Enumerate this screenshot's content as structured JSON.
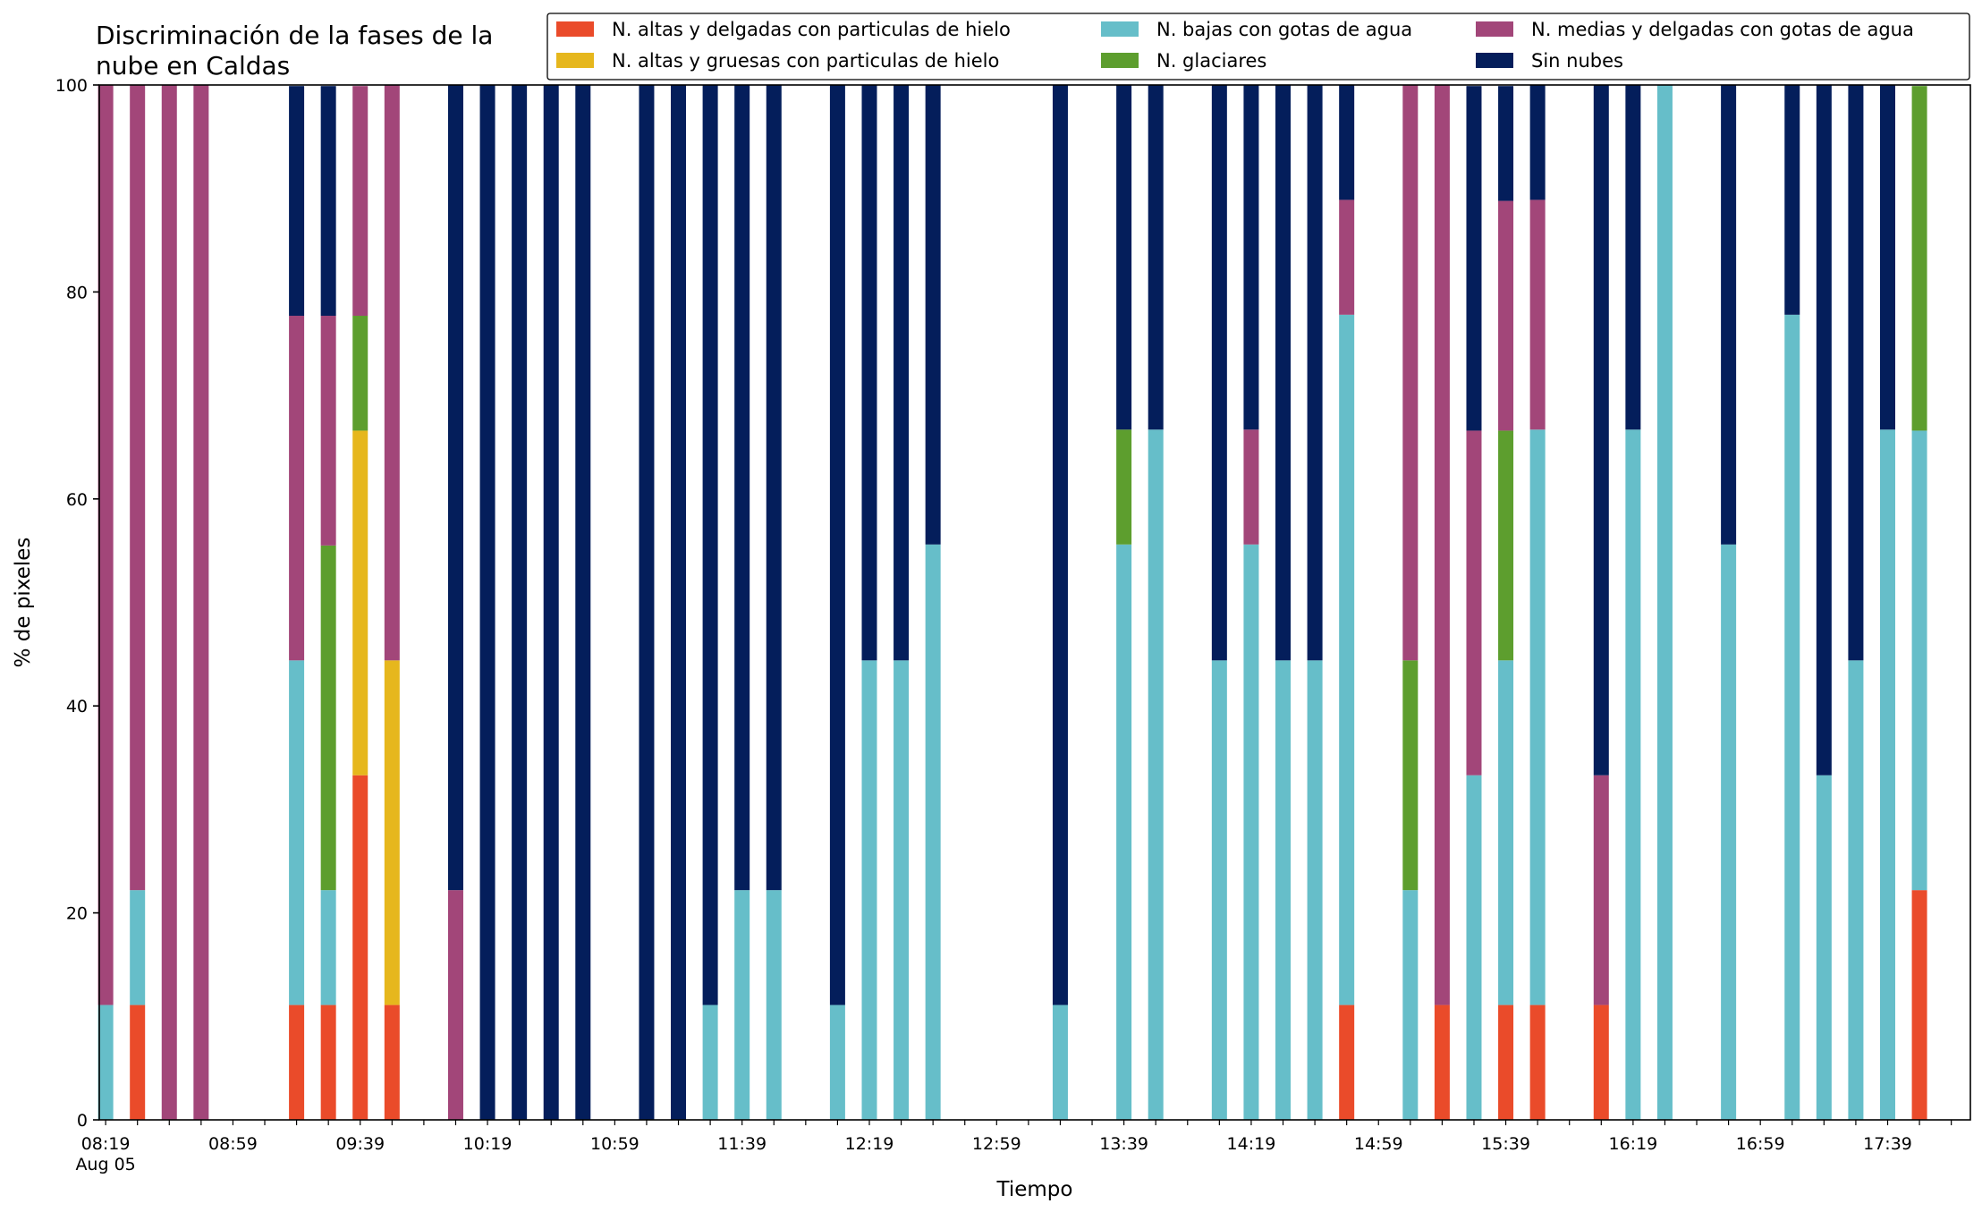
{
  "chart_data": {
    "type": "bar",
    "stacked": true,
    "title": "Discriminación de la fases de la\nnube en Caldas",
    "xlabel": "Tiempo",
    "ylabel": "% de pixeles",
    "ylim": [
      0,
      100
    ],
    "xlim": [
      "08:17",
      "18:05"
    ],
    "grid": false,
    "legend_position": "top-right",
    "y_ticks": [
      0,
      20,
      40,
      60,
      80,
      100
    ],
    "x_tick_labels": [
      {
        "time": "08:19",
        "label": "08:19",
        "sublabel": "Aug 05"
      },
      {
        "time": "08:59",
        "label": "08:59"
      },
      {
        "time": "09:39",
        "label": "09:39"
      },
      {
        "time": "10:19",
        "label": "10:19"
      },
      {
        "time": "10:59",
        "label": "10:59"
      },
      {
        "time": "11:39",
        "label": "11:39"
      },
      {
        "time": "12:19",
        "label": "12:19"
      },
      {
        "time": "12:59",
        "label": "12:59"
      },
      {
        "time": "13:39",
        "label": "13:39"
      },
      {
        "time": "14:19",
        "label": "14:19"
      },
      {
        "time": "14:59",
        "label": "14:59"
      },
      {
        "time": "15:39",
        "label": "15:39"
      },
      {
        "time": "16:19",
        "label": "16:19"
      },
      {
        "time": "16:59",
        "label": "16:59"
      },
      {
        "time": "17:39",
        "label": "17:39"
      }
    ],
    "series": [
      {
        "key": "hielo_delgadas",
        "name": "N. altas y delgadas con particulas de hielo",
        "color": "#ea4b2a"
      },
      {
        "key": "hielo_gruesas",
        "name": "N. altas y gruesas con particulas de hielo",
        "color": "#e6b71d"
      },
      {
        "key": "bajas_agua",
        "name": "N. bajas con gotas de agua",
        "color": "#66bec9"
      },
      {
        "key": "glaciares",
        "name": "N. glaciares",
        "color": "#5d9e2e"
      },
      {
        "key": "medias_agua",
        "name": "N. medias y delgadas con gotas de agua",
        "color": "#a24679"
      },
      {
        "key": "sin_nubes",
        "name": "Sin nubes",
        "color": "#041e5b"
      }
    ],
    "stack_order": [
      "hielo_delgadas",
      "hielo_gruesas",
      "bajas_agua",
      "glaciares",
      "medias_agua",
      "sin_nubes"
    ],
    "legend_order": [
      "hielo_delgadas",
      "hielo_gruesas",
      "bajas_agua",
      "glaciares",
      "medias_agua",
      "sin_nubes"
    ],
    "bars": [
      {
        "time": "08:19",
        "hielo_delgadas": 0,
        "hielo_gruesas": 0,
        "bajas_agua": 11.1,
        "glaciares": 0,
        "medias_agua": 88.9,
        "sin_nubes": 0
      },
      {
        "time": "08:29",
        "hielo_delgadas": 11.1,
        "hielo_gruesas": 0,
        "bajas_agua": 11.1,
        "glaciares": 0,
        "medias_agua": 77.8,
        "sin_nubes": 0
      },
      {
        "time": "08:39",
        "hielo_delgadas": 0,
        "hielo_gruesas": 0,
        "bajas_agua": 0,
        "glaciares": 0,
        "medias_agua": 100,
        "sin_nubes": 0
      },
      {
        "time": "08:49",
        "hielo_delgadas": 0,
        "hielo_gruesas": 0,
        "bajas_agua": 0,
        "glaciares": 0,
        "medias_agua": 100,
        "sin_nubes": 0
      },
      {
        "time": "09:19",
        "hielo_delgadas": 11.1,
        "hielo_gruesas": 0,
        "bajas_agua": 33.3,
        "glaciares": 0,
        "medias_agua": 33.3,
        "sin_nubes": 22.2
      },
      {
        "time": "09:29",
        "hielo_delgadas": 11.1,
        "hielo_gruesas": 0,
        "bajas_agua": 11.1,
        "glaciares": 33.3,
        "medias_agua": 22.2,
        "sin_nubes": 22.2
      },
      {
        "time": "09:39",
        "hielo_delgadas": 33.3,
        "hielo_gruesas": 33.3,
        "bajas_agua": 0,
        "glaciares": 11.1,
        "medias_agua": 22.2,
        "sin_nubes": 0
      },
      {
        "time": "09:49",
        "hielo_delgadas": 11.1,
        "hielo_gruesas": 33.3,
        "bajas_agua": 0,
        "glaciares": 0,
        "medias_agua": 55.6,
        "sin_nubes": 0
      },
      {
        "time": "10:09",
        "hielo_delgadas": 0,
        "hielo_gruesas": 0,
        "bajas_agua": 0,
        "glaciares": 0,
        "medias_agua": 22.2,
        "sin_nubes": 77.8
      },
      {
        "time": "10:19",
        "hielo_delgadas": 0,
        "hielo_gruesas": 0,
        "bajas_agua": 0,
        "glaciares": 0,
        "medias_agua": 0,
        "sin_nubes": 100
      },
      {
        "time": "10:29",
        "hielo_delgadas": 0,
        "hielo_gruesas": 0,
        "bajas_agua": 0,
        "glaciares": 0,
        "medias_agua": 0,
        "sin_nubes": 100
      },
      {
        "time": "10:39",
        "hielo_delgadas": 0,
        "hielo_gruesas": 0,
        "bajas_agua": 0,
        "glaciares": 0,
        "medias_agua": 0,
        "sin_nubes": 100
      },
      {
        "time": "10:49",
        "hielo_delgadas": 0,
        "hielo_gruesas": 0,
        "bajas_agua": 0,
        "glaciares": 0,
        "medias_agua": 0,
        "sin_nubes": 100
      },
      {
        "time": "11:09",
        "hielo_delgadas": 0,
        "hielo_gruesas": 0,
        "bajas_agua": 0,
        "glaciares": 0,
        "medias_agua": 0,
        "sin_nubes": 100
      },
      {
        "time": "11:19",
        "hielo_delgadas": 0,
        "hielo_gruesas": 0,
        "bajas_agua": 0,
        "glaciares": 0,
        "medias_agua": 0,
        "sin_nubes": 100
      },
      {
        "time": "11:29",
        "hielo_delgadas": 0,
        "hielo_gruesas": 0,
        "bajas_agua": 11.1,
        "glaciares": 0,
        "medias_agua": 0,
        "sin_nubes": 88.9
      },
      {
        "time": "11:39",
        "hielo_delgadas": 0,
        "hielo_gruesas": 0,
        "bajas_agua": 22.2,
        "glaciares": 0,
        "medias_agua": 0,
        "sin_nubes": 77.8
      },
      {
        "time": "11:49",
        "hielo_delgadas": 0,
        "hielo_gruesas": 0,
        "bajas_agua": 22.2,
        "glaciares": 0,
        "medias_agua": 0,
        "sin_nubes": 77.8
      },
      {
        "time": "12:09",
        "hielo_delgadas": 0,
        "hielo_gruesas": 0,
        "bajas_agua": 11.1,
        "glaciares": 0,
        "medias_agua": 0,
        "sin_nubes": 88.9
      },
      {
        "time": "12:19",
        "hielo_delgadas": 0,
        "hielo_gruesas": 0,
        "bajas_agua": 44.4,
        "glaciares": 0,
        "medias_agua": 0,
        "sin_nubes": 55.6
      },
      {
        "time": "12:29",
        "hielo_delgadas": 0,
        "hielo_gruesas": 0,
        "bajas_agua": 44.4,
        "glaciares": 0,
        "medias_agua": 0,
        "sin_nubes": 55.6
      },
      {
        "time": "12:39",
        "hielo_delgadas": 0,
        "hielo_gruesas": 0,
        "bajas_agua": 55.6,
        "glaciares": 0,
        "medias_agua": 0,
        "sin_nubes": 44.4
      },
      {
        "time": "13:19",
        "hielo_delgadas": 0,
        "hielo_gruesas": 0,
        "bajas_agua": 11.1,
        "glaciares": 0,
        "medias_agua": 0,
        "sin_nubes": 88.9
      },
      {
        "time": "13:39",
        "hielo_delgadas": 0,
        "hielo_gruesas": 0,
        "bajas_agua": 55.6,
        "glaciares": 11.1,
        "medias_agua": 0,
        "sin_nubes": 33.3
      },
      {
        "time": "13:49",
        "hielo_delgadas": 0,
        "hielo_gruesas": 0,
        "bajas_agua": 66.7,
        "glaciares": 0,
        "medias_agua": 0,
        "sin_nubes": 33.3
      },
      {
        "time": "14:09",
        "hielo_delgadas": 0,
        "hielo_gruesas": 0,
        "bajas_agua": 44.4,
        "glaciares": 0,
        "medias_agua": 0,
        "sin_nubes": 55.6
      },
      {
        "time": "14:19",
        "hielo_delgadas": 0,
        "hielo_gruesas": 0,
        "bajas_agua": 55.6,
        "glaciares": 0,
        "medias_agua": 11.1,
        "sin_nubes": 33.3
      },
      {
        "time": "14:29",
        "hielo_delgadas": 0,
        "hielo_gruesas": 0,
        "bajas_agua": 44.4,
        "glaciares": 0,
        "medias_agua": 0,
        "sin_nubes": 55.6
      },
      {
        "time": "14:39",
        "hielo_delgadas": 0,
        "hielo_gruesas": 0,
        "bajas_agua": 44.4,
        "glaciares": 0,
        "medias_agua": 0,
        "sin_nubes": 55.6
      },
      {
        "time": "14:49",
        "hielo_delgadas": 11.1,
        "hielo_gruesas": 0,
        "bajas_agua": 66.7,
        "glaciares": 0,
        "medias_agua": 11.1,
        "sin_nubes": 11.1
      },
      {
        "time": "15:09",
        "hielo_delgadas": 0,
        "hielo_gruesas": 0,
        "bajas_agua": 22.2,
        "glaciares": 22.2,
        "medias_agua": 55.6,
        "sin_nubes": 0
      },
      {
        "time": "15:19",
        "hielo_delgadas": 11.1,
        "hielo_gruesas": 0,
        "bajas_agua": 0,
        "glaciares": 0,
        "medias_agua": 88.9,
        "sin_nubes": 0
      },
      {
        "time": "15:29",
        "hielo_delgadas": 0,
        "hielo_gruesas": 0,
        "bajas_agua": 33.3,
        "glaciares": 0,
        "medias_agua": 33.3,
        "sin_nubes": 33.3
      },
      {
        "time": "15:39",
        "hielo_delgadas": 11.1,
        "hielo_gruesas": 0,
        "bajas_agua": 33.3,
        "glaciares": 22.2,
        "medias_agua": 22.2,
        "sin_nubes": 11.1
      },
      {
        "time": "15:49",
        "hielo_delgadas": 11.1,
        "hielo_gruesas": 0,
        "bajas_agua": 55.6,
        "glaciares": 0,
        "medias_agua": 22.2,
        "sin_nubes": 11.1
      },
      {
        "time": "16:09",
        "hielo_delgadas": 11.1,
        "hielo_gruesas": 0,
        "bajas_agua": 0,
        "glaciares": 0,
        "medias_agua": 22.2,
        "sin_nubes": 66.7
      },
      {
        "time": "16:19",
        "hielo_delgadas": 0,
        "hielo_gruesas": 0,
        "bajas_agua": 66.7,
        "glaciares": 0,
        "medias_agua": 0,
        "sin_nubes": 33.3
      },
      {
        "time": "16:29",
        "hielo_delgadas": 0,
        "hielo_gruesas": 0,
        "bajas_agua": 100,
        "glaciares": 0,
        "medias_agua": 0,
        "sin_nubes": 0
      },
      {
        "time": "16:49",
        "hielo_delgadas": 0,
        "hielo_gruesas": 0,
        "bajas_agua": 55.6,
        "glaciares": 0,
        "medias_agua": 0,
        "sin_nubes": 44.4
      },
      {
        "time": "17:09",
        "hielo_delgadas": 0,
        "hielo_gruesas": 0,
        "bajas_agua": 77.8,
        "glaciares": 0,
        "medias_agua": 0,
        "sin_nubes": 22.2
      },
      {
        "time": "17:19",
        "hielo_delgadas": 0,
        "hielo_gruesas": 0,
        "bajas_agua": 33.3,
        "glaciares": 0,
        "medias_agua": 0,
        "sin_nubes": 66.7
      },
      {
        "time": "17:29",
        "hielo_delgadas": 0,
        "hielo_gruesas": 0,
        "bajas_agua": 44.4,
        "glaciares": 0,
        "medias_agua": 0,
        "sin_nubes": 55.6
      },
      {
        "time": "17:39",
        "hielo_delgadas": 0,
        "hielo_gruesas": 0,
        "bajas_agua": 66.7,
        "glaciares": 0,
        "medias_agua": 0,
        "sin_nubes": 33.3
      },
      {
        "time": "17:49",
        "hielo_delgadas": 22.2,
        "hielo_gruesas": 0,
        "bajas_agua": 44.4,
        "glaciares": 33.3,
        "medias_agua": 0,
        "sin_nubes": 0
      }
    ]
  }
}
